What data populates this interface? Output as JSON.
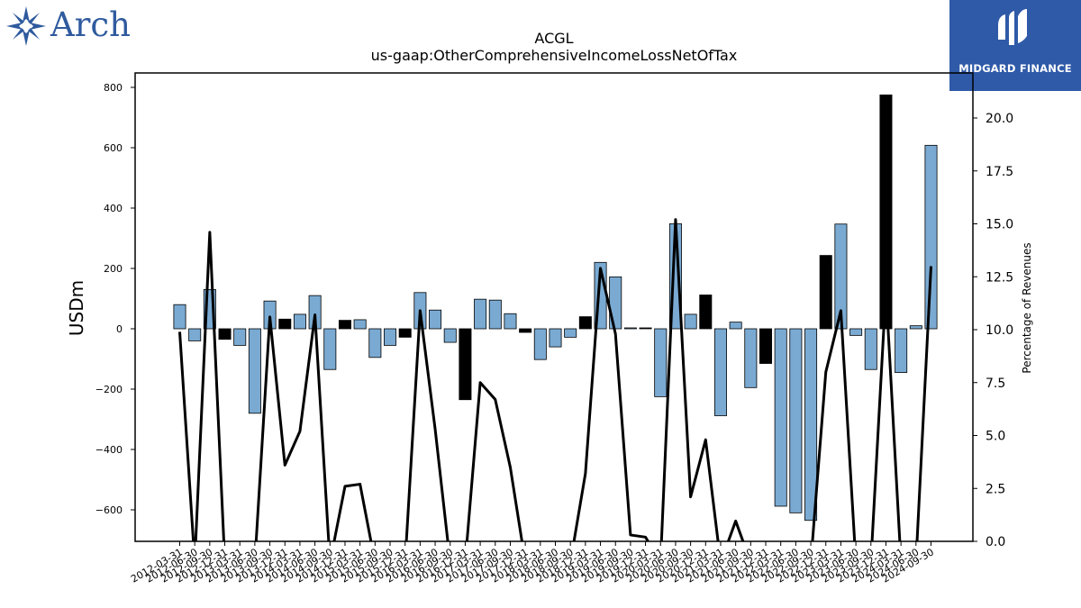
{
  "brand": {
    "left_logo_text": "Arch",
    "right_logo_text": "MIDGARD FINANCE"
  },
  "chart_data": {
    "type": "bar",
    "title": "ACGL",
    "subtitle": "us-gaap:OtherComprehensiveIncomeLossNetOfTax",
    "ylabel": "USDm",
    "y2label": "Percentage of Revenues",
    "ylim": [
      -700,
      845
    ],
    "y2lim": [
      0,
      22.2
    ],
    "yticks": [
      -600,
      -400,
      -200,
      0,
      200,
      400,
      600,
      800
    ],
    "y2ticks": [
      0.0,
      2.5,
      5.0,
      7.5,
      10.0,
      12.5,
      15.0,
      17.5,
      20.0
    ],
    "grid": false,
    "colors": {
      "quarter_bar": "#7aaad2",
      "annual_bar": "#000000",
      "line": "#000000"
    },
    "categories": [
      "2012-03-31",
      "2012-06-30",
      "2012-09-30",
      "2012-12-31",
      "2013-03-31",
      "2013-06-30",
      "2013-09-30",
      "2013-12-31",
      "2014-03-31",
      "2014-06-30",
      "2014-09-30",
      "2014-12-31",
      "2015-03-31",
      "2015-06-30",
      "2015-09-30",
      "2015-12-31",
      "2016-03-31",
      "2016-06-30",
      "2016-09-30",
      "2016-12-31",
      "2017-03-31",
      "2017-06-30",
      "2017-09-30",
      "2017-12-31",
      "2018-03-31",
      "2018-06-30",
      "2018-09-30",
      "2018-12-31",
      "2019-03-31",
      "2019-06-30",
      "2019-09-30",
      "2019-12-31",
      "2020-03-31",
      "2020-06-30",
      "2020-09-30",
      "2020-12-31",
      "2021-03-31",
      "2021-06-30",
      "2021-09-30",
      "2021-12-31",
      "2022-03-31",
      "2022-06-30",
      "2022-09-30",
      "2022-12-31",
      "2023-03-31",
      "2023-06-30",
      "2023-09-30",
      "2023-12-31",
      "2024-03-31",
      "2024-06-30",
      "2024-09-30"
    ],
    "tick_labels": [
      "2012-03-31",
      "2012-06-30",
      "2012-09-30",
      "2012-12-31",
      "2013-03-31",
      "2013-06-30",
      "2013-09-30",
      "2013-12-31",
      "2014-03-31",
      "2014-06-30",
      "2014-09-30",
      "2014-12-31",
      "2015-03-31",
      "2015-06-30",
      "2015-09-30",
      "2015-12-31",
      "2016-03-31",
      "2016-06-30",
      "2016-09-30",
      "2016-12-31",
      "2017-03-31",
      "2017-06-30",
      "2017-09-30",
      "2017-12-31",
      "2018-03-31",
      "2018-06-30",
      "2018-09-30",
      "2018-12-31",
      "2019-03-31",
      "2019-06-30",
      "2019-09-30",
      "2019-12-31",
      "2020-03-31",
      "2020-06-30",
      "2020-09-30",
      "2020-12-31",
      "2021-03-31",
      "2021-06-30",
      "2021-09-30",
      "2021-12-31",
      "2022-03-31",
      "2022-06-30",
      "2022-09-30",
      "2022-12-31",
      "2023-03-31",
      "2023-06-30",
      "2023-09-30",
      "2023-12-31",
      "2024-03-31",
      "2024-06-30",
      "2024-09-30"
    ],
    "series": [
      {
        "values": [
          80,
          -40,
          130,
          -35,
          -55,
          -280,
          92,
          32,
          48,
          110,
          -135,
          28,
          30,
          -95,
          -55,
          -28,
          120,
          62,
          -45,
          -235,
          98,
          95,
          50,
          -12,
          -102,
          -60,
          -28,
          40,
          220,
          172,
          3,
          3,
          -225,
          348,
          48,
          112,
          -288,
          22,
          -195,
          -115,
          -588,
          -610,
          -635,
          243,
          347,
          -22,
          -135,
          775,
          -145,
          10,
          608
        ],
        "annual": [
          false,
          false,
          false,
          true,
          false,
          false,
          false,
          true,
          false,
          false,
          false,
          true,
          false,
          false,
          false,
          true,
          false,
          false,
          false,
          true,
          false,
          false,
          false,
          true,
          false,
          false,
          false,
          true,
          false,
          false,
          false,
          true,
          false,
          false,
          false,
          true,
          false,
          false,
          false,
          true,
          false,
          false,
          false,
          true,
          false,
          false,
          false,
          true,
          false,
          false,
          false
        ]
      },
      {
        "axis": "right",
        "kind": "line",
        "values": [
          9.9,
          -1,
          14.6,
          -1,
          -1,
          -1,
          10.6,
          3.6,
          5.2,
          10.7,
          -1,
          2.6,
          2.7,
          -1,
          -1,
          -1,
          10.9,
          5.3,
          -1,
          -1,
          7.5,
          6.7,
          3.5,
          -1,
          -1,
          -1,
          -1,
          3.2,
          12.9,
          9.8,
          0.3,
          0.2,
          -1,
          15.2,
          2.1,
          4.8,
          -1,
          0.96,
          -1,
          -1,
          -1,
          -1,
          -1,
          8.0,
          10.9,
          -1,
          -1,
          11.9,
          -1,
          -1,
          13.0
        ]
      }
    ]
  }
}
